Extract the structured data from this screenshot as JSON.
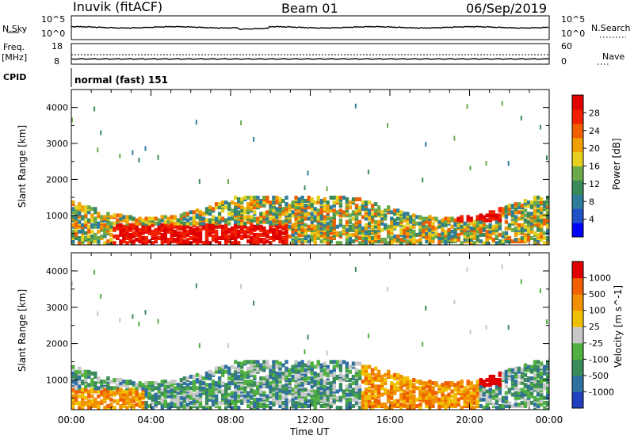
{
  "header": {
    "station": "Inuvik (fitACF)",
    "beam": "Beam 01",
    "date": "06/Sep/2019"
  },
  "top_panels": {
    "nsky_label": "N.Sky",
    "nsky_ticks": [
      "10^5",
      "10^0"
    ],
    "nsearch_label": "N.Search",
    "nsearch_ticks": [
      "10^5",
      "10^0"
    ],
    "freq_label": "Freq.",
    "freq_unit": "[MHz]",
    "freq_ticks": [
      "18",
      "8"
    ],
    "nave_label": "Nave",
    "nave_ticks": [
      "60",
      "0"
    ],
    "cpid_label": "CPID",
    "cpid_value": "normal (fast) 151"
  },
  "chart_data": [
    {
      "type": "heatmap",
      "name": "power",
      "ylabel": "Slant Range [km]",
      "yticks": [
        "4000",
        "3000",
        "2000",
        "1000"
      ],
      "ylim": [
        180,
        4500
      ],
      "colorbar_label": "Power [dB]",
      "colorbar_ticks": [
        "28",
        "24",
        "20",
        "16",
        "12",
        "8",
        "4"
      ],
      "colors": [
        "#0000ff",
        "#2050c8",
        "#2e7d9a",
        "#3a8a5a",
        "#6aaa4a",
        "#e6d020",
        "#f0a000",
        "#f06000",
        "#f02000",
        "#e00000"
      ]
    },
    {
      "type": "heatmap",
      "name": "velocity",
      "ylabel": "Slant Range [km]",
      "yticks": [
        "4000",
        "3000",
        "2000",
        "1000"
      ],
      "ylim": [
        180,
        4500
      ],
      "colorbar_label": "Velocity [m s^-1]",
      "colorbar_ticks": [
        "1000",
        "500",
        "100",
        "25",
        "-25",
        "-100",
        "-500",
        "-1000"
      ],
      "colors": [
        "#2040c0",
        "#3070a0",
        "#3a8a5a",
        "#50b040",
        "#c8c8c8",
        "#f0c000",
        "#f09000",
        "#f06000",
        "#e00000"
      ],
      "xlabel": "Time UT",
      "xticks": [
        "00:00",
        "04:00",
        "08:00",
        "12:00",
        "16:00",
        "20:00",
        "00:00"
      ]
    }
  ]
}
